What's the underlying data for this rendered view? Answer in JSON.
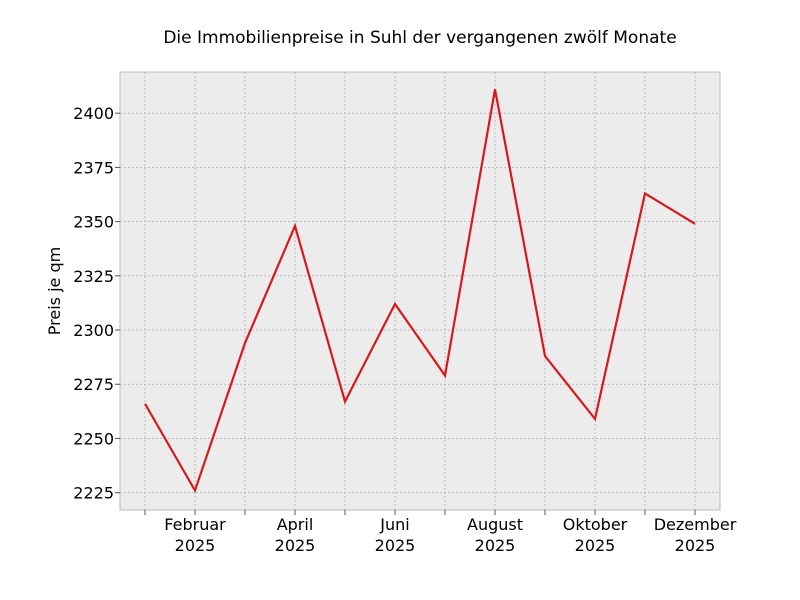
{
  "chart_data": {
    "type": "line",
    "title": "Die Immobilienpreise in Suhl der vergangenen zwölf Monate",
    "xlabel": "",
    "ylabel": "Preis je qm",
    "x": [
      "2025-01",
      "2025-02",
      "2025-03",
      "2025-04",
      "2025-05",
      "2025-06",
      "2025-07",
      "2025-08",
      "2025-09",
      "2025-10",
      "2025-11",
      "2025-12"
    ],
    "x_tick_labels": [
      {
        "x": "2025-02",
        "line1": "Februar",
        "line2": "2025"
      },
      {
        "x": "2025-04",
        "line1": "April",
        "line2": "2025"
      },
      {
        "x": "2025-06",
        "line1": "Juni",
        "line2": "2025"
      },
      {
        "x": "2025-08",
        "line1": "August",
        "line2": "2025"
      },
      {
        "x": "2025-10",
        "line1": "Oktober",
        "line2": "2025"
      },
      {
        "x": "2025-12",
        "line1": "Dezember",
        "line2": "2025"
      }
    ],
    "y_ticks": [
      2225,
      2250,
      2275,
      2300,
      2325,
      2350,
      2375,
      2400
    ],
    "ylim": [
      2217,
      2419
    ],
    "series": [
      {
        "values": [
          2266,
          2226,
          2294,
          2348,
          2267,
          2312,
          2279,
          2411,
          2288,
          2259,
          2363,
          2349
        ],
        "color": "#d7191c"
      }
    ],
    "grid": true,
    "legend": "none",
    "background_color": "#ececec"
  }
}
